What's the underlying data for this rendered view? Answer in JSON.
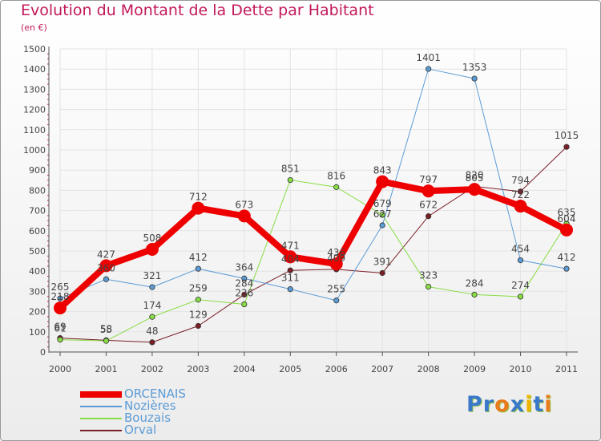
{
  "title": "Evolution du Montant de la Dette par Habitant",
  "subtitle": "(en €)",
  "logo_text": "Proxiti",
  "chart_data": {
    "type": "line",
    "title": "Evolution du Montant de la Dette par Habitant",
    "subtitle": "(en €)",
    "x": [
      "2000",
      "2001",
      "2002",
      "2003",
      "2004",
      "2005",
      "2006",
      "2007",
      "2008",
      "2009",
      "2010",
      "2011"
    ],
    "ylim": [
      0,
      1500
    ],
    "yticks": [
      "0",
      "100",
      "200",
      "300",
      "400",
      "500",
      "600",
      "700",
      "800",
      "900",
      "1000",
      "1100",
      "1200",
      "1300",
      "1400",
      "1500"
    ],
    "grid": true,
    "legend_position": "bottom-left",
    "series": [
      {
        "name": "ORCENAIS",
        "color": "#ee0000",
        "width": 8,
        "marker": 8,
        "values": [
          218,
          427,
          508,
          712,
          673,
          471,
          436,
          843,
          797,
          805,
          722,
          604
        ],
        "labels": [
          "218",
          "427",
          "508",
          "712",
          "673",
          "471",
          "436",
          "843",
          "797",
          "805",
          "722",
          "604"
        ]
      },
      {
        "name": "Nozières",
        "color": "#5b9bd5",
        "width": 1,
        "marker": 3.2,
        "values": [
          265,
          360,
          321,
          412,
          364,
          311,
          255,
          627,
          1401,
          1353,
          454,
          412
        ],
        "labels": [
          "265",
          "360",
          "321",
          "412",
          "364",
          "311",
          "255",
          "627",
          "1401",
          "1353",
          "454",
          "412"
        ]
      },
      {
        "name": "Bouzais",
        "color": "#88dd44",
        "width": 1,
        "marker": 3.2,
        "values": [
          61,
          55,
          174,
          259,
          236,
          851,
          816,
          679,
          323,
          284,
          274,
          635
        ],
        "labels": [
          "61",
          "55",
          "174",
          "259",
          "236",
          "851",
          "816",
          "679",
          "323",
          "284",
          "274",
          "635"
        ]
      },
      {
        "name": "Orval",
        "color": "#7a1f26",
        "width": 1,
        "marker": 3.2,
        "values": [
          69,
          58,
          48,
          129,
          284,
          404,
          409,
          391,
          672,
          820,
          794,
          1015
        ],
        "labels": [
          "69",
          "58",
          "48",
          "129",
          "284",
          "404",
          "409",
          "391",
          "672",
          "820",
          "794",
          "1015"
        ]
      }
    ]
  }
}
